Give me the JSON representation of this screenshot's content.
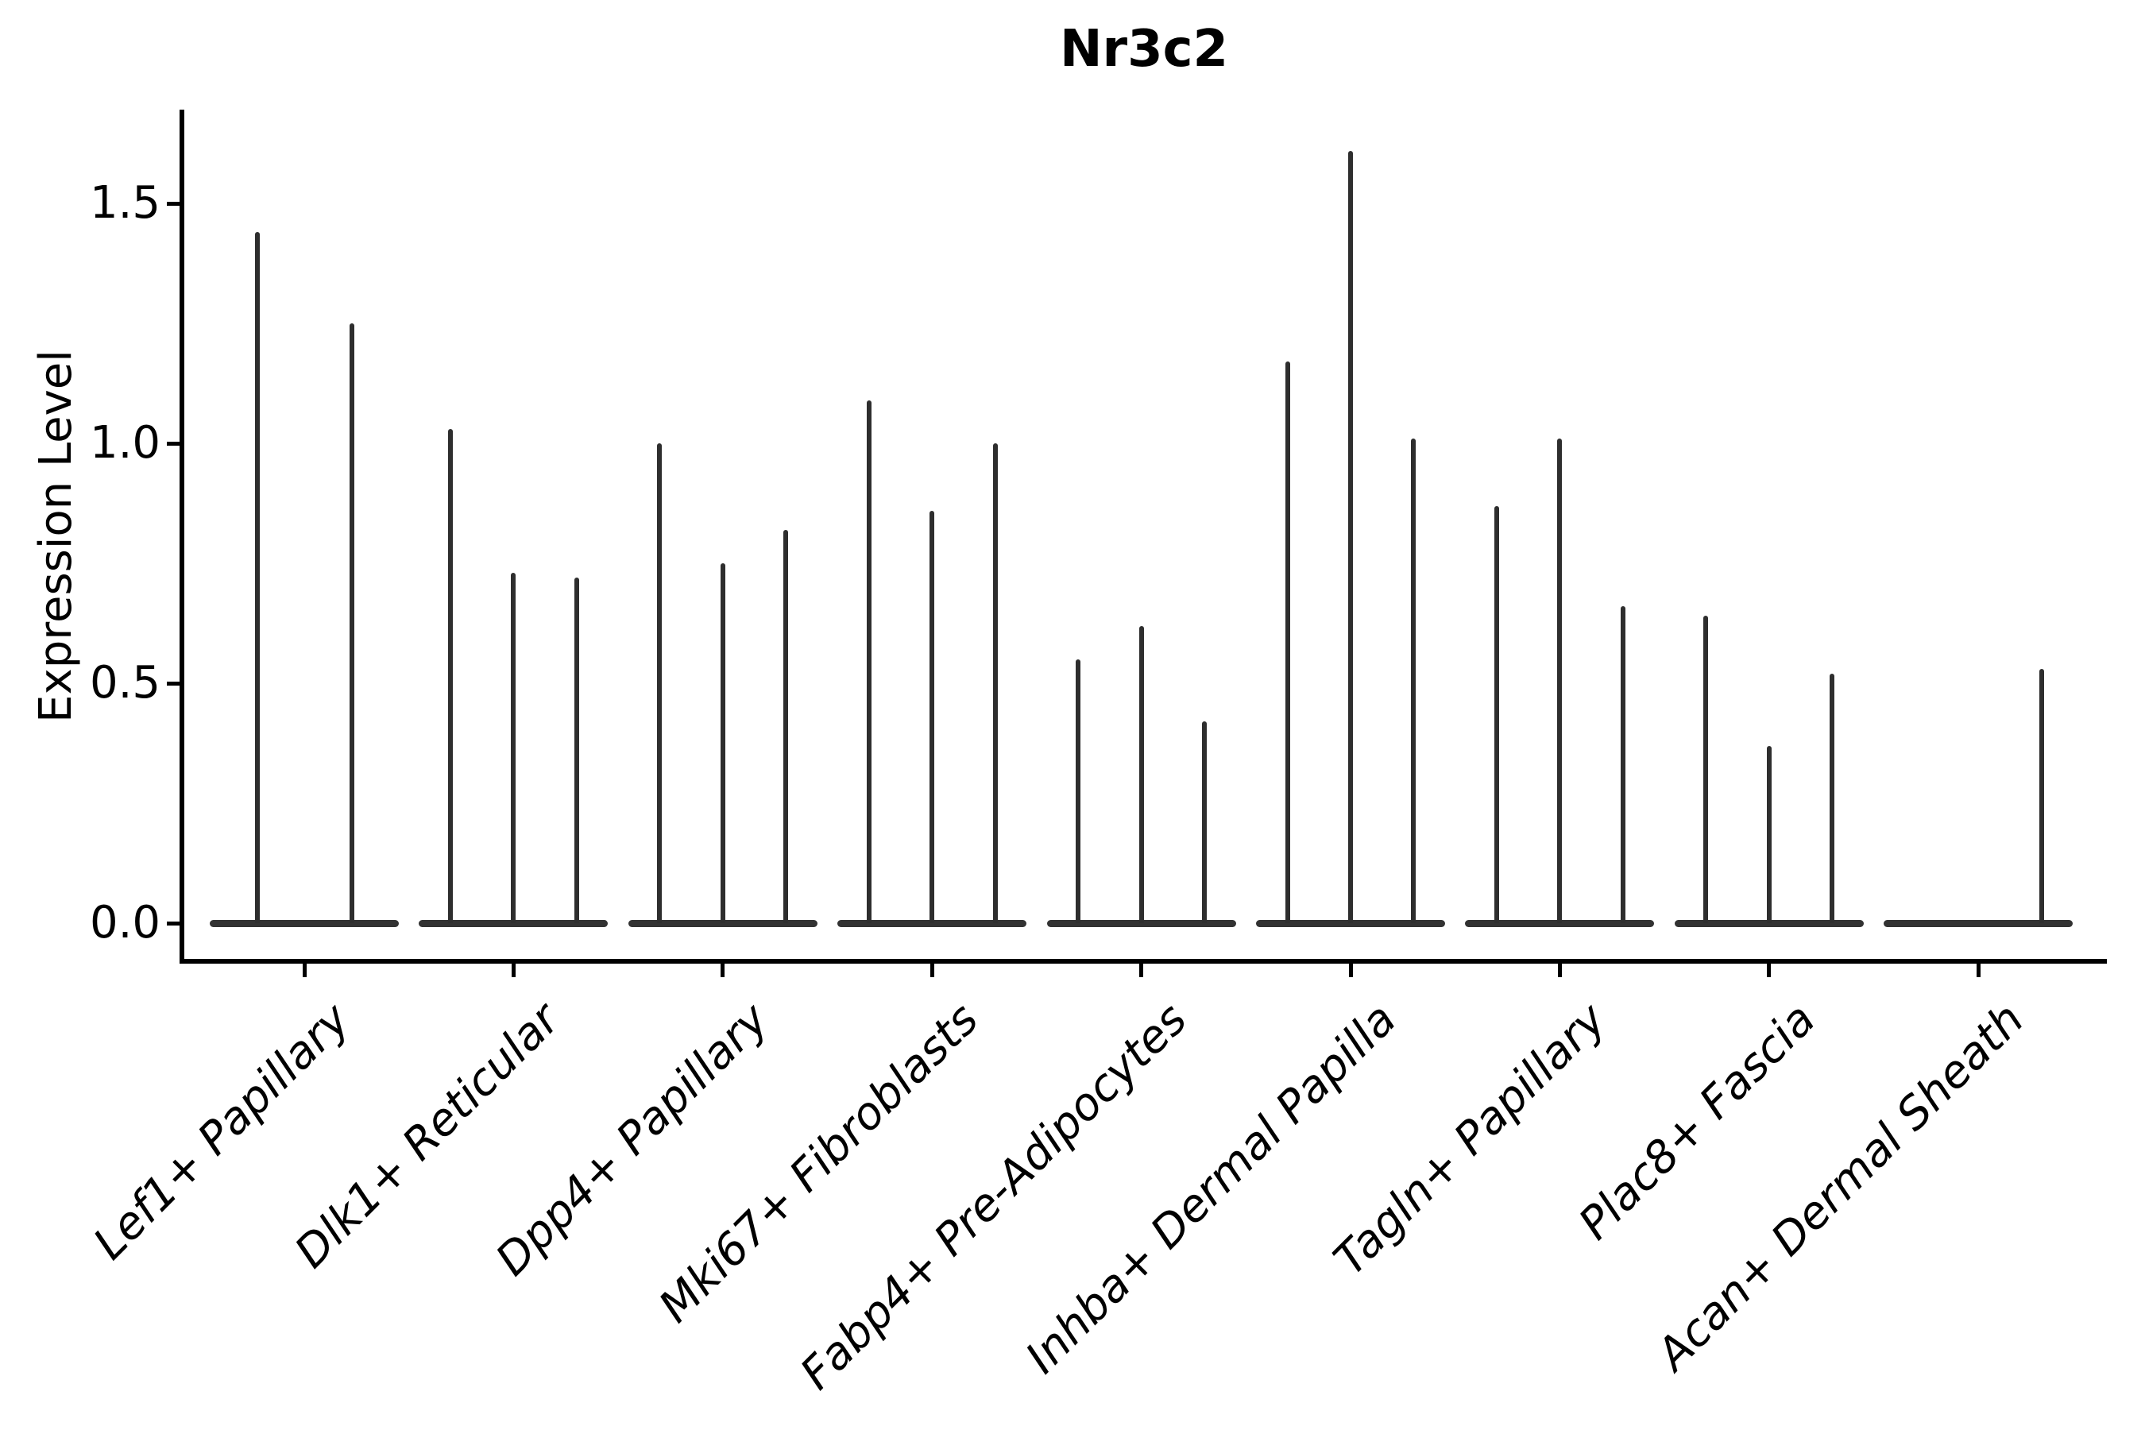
{
  "chart_data": {
    "type": "violin",
    "title": "Nr3c2",
    "ylabel": "Expression Level",
    "xlabel": "",
    "ylim": [
      0,
      1.68
    ],
    "yticks": [
      0,
      0.5,
      1.0,
      1.5
    ],
    "ytick_labels": [
      "0.0",
      "0.5",
      "1.0",
      "1.5"
    ],
    "grid": false,
    "legend": "none",
    "categories": [
      "Lef1+ Papillary",
      "Dlk1+ Reticular",
      "Dpp4+ Papillary",
      "Mki67+ Fibroblasts",
      "Fabp4+ Pre-Adipocytes",
      "Inhba+ Dermal Papilla",
      "Tagln+ Papillary",
      "Plac8+ Fascia",
      "Acan+ Dermal Sheath"
    ],
    "groups": [
      {
        "category": "Lef1+ Papillary",
        "spike_values": [
          1.44,
          1.25
        ]
      },
      {
        "category": "Dlk1+ Reticular",
        "spike_values": [
          1.03,
          0.73,
          0.72
        ]
      },
      {
        "category": "Dpp4+ Papillary",
        "spike_values": [
          1.0,
          0.75,
          0.82
        ]
      },
      {
        "category": "Mki67+ Fibroblasts",
        "spike_values": [
          1.09,
          0.86,
          1.0
        ]
      },
      {
        "category": "Fabp4+ Pre-Adipocytes",
        "spike_values": [
          0.55,
          0.62,
          0.42
        ]
      },
      {
        "category": "Inhba+ Dermal Papilla",
        "spike_values": [
          1.17,
          1.61,
          1.01
        ]
      },
      {
        "category": "Tagln+ Papillary",
        "spike_values": [
          0.87,
          1.01,
          0.66
        ]
      },
      {
        "category": "Plac8+ Fascia",
        "spike_values": [
          0.64,
          0.37,
          0.52
        ]
      },
      {
        "category": "Acan+ Dermal Sheath",
        "spike_values": [
          0,
          0,
          0.53
        ]
      }
    ],
    "style_note": "each category shows 2-3 very thin black violins: flat body at expression 0 plus a hairline spike up to the max expression value (0 = no spike)",
    "colors": {
      "violin": "#2e2e2e",
      "violin_base": "#323232",
      "axis": "#000000",
      "text": "#000000",
      "background": "#ffffff"
    }
  }
}
